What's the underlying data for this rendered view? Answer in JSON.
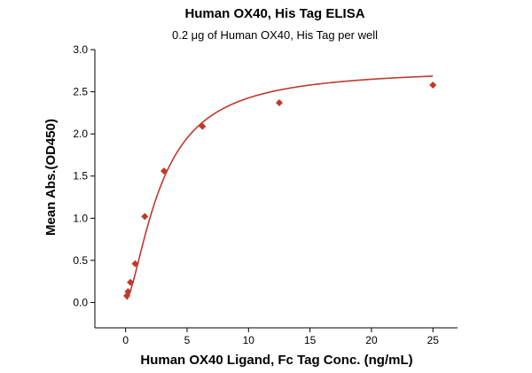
{
  "chart_data": {
    "type": "scatter",
    "title": "Human OX40, His Tag ELISA",
    "subtitle": "0.2 μg of Human OX40, His Tag per well",
    "xlabel": "Human OX40 Ligand, Fc Tag Conc. (ng/mL)",
    "ylabel": "Mean Abs.(OD450)",
    "xlim": [
      -2.5,
      27
    ],
    "ylim": [
      -0.3,
      3.0
    ],
    "xticks": [
      0,
      5,
      10,
      15,
      20,
      25
    ],
    "xtick_labels": [
      "0",
      "5",
      "10",
      "15",
      "20",
      "25"
    ],
    "yticks": [
      0.0,
      0.5,
      1.0,
      1.5,
      2.0,
      2.5,
      3.0
    ],
    "ytick_labels": [
      "0.0",
      "0.5",
      "1.0",
      "1.5",
      "2.0",
      "2.5",
      "3.0"
    ],
    "grid": false,
    "color": "#c0392b",
    "series": [
      {
        "x": [
          0.098,
          0.195,
          0.39,
          0.78,
          1.56,
          3.125,
          6.25,
          12.5,
          25
        ],
        "y": [
          0.08,
          0.13,
          0.24,
          0.46,
          1.02,
          1.56,
          2.09,
          2.37,
          2.58
        ],
        "marker": "diamond",
        "fit": "sigmoidal"
      }
    ]
  }
}
